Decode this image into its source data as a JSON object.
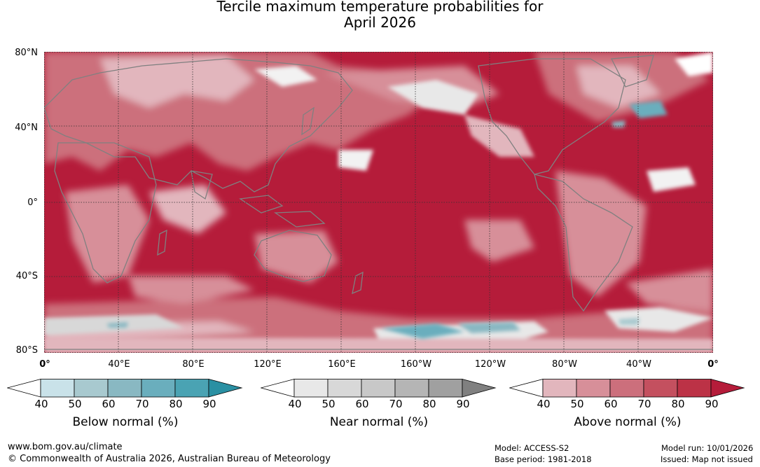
{
  "title": {
    "line1": "Tercile maximum temperature probabilities for",
    "line2": "April 2026"
  },
  "map": {
    "lat_labels": [
      "80°N",
      "40°N",
      "0°",
      "40°S",
      "80°S"
    ],
    "lon_labels": [
      "0°",
      "40°E",
      "80°E",
      "120°E",
      "160°E",
      "160°W",
      "120°W",
      "80°W",
      "40°W",
      "0°"
    ],
    "colors": {
      "ocean_base": "#b51c3a",
      "land_outline": "#808080",
      "gridline": "#333333"
    }
  },
  "colorbars": [
    {
      "title": "Below normal (%)",
      "ticks": [
        "40",
        "50",
        "60",
        "70",
        "80",
        "90"
      ],
      "colors": [
        "#ffffff",
        "#c9e2e9",
        "#a8c9cf",
        "#89b8c2",
        "#6aaebd",
        "#4aa3b3",
        "#2a90a3"
      ]
    },
    {
      "title": "Near normal (%)",
      "ticks": [
        "40",
        "50",
        "60",
        "70",
        "80",
        "90"
      ],
      "colors": [
        "#ffffff",
        "#e8e8e8",
        "#d8d8d8",
        "#c8c8c8",
        "#b5b5b5",
        "#a0a0a0",
        "#808080"
      ]
    },
    {
      "title": "Above normal (%)",
      "ticks": [
        "40",
        "50",
        "60",
        "70",
        "80",
        "90"
      ],
      "colors": [
        "#ffffff",
        "#e2b6bd",
        "#d78f99",
        "#cc6f7c",
        "#c4505f",
        "#bc3246",
        "#b51c3a"
      ]
    }
  ],
  "footer": {
    "website": "www.bom.gov.au/climate",
    "copyright": "© Commonwealth of Australia 2026, Australian Bureau of Meteorology",
    "model": "Model: ACCESS-S2",
    "base_period": "Base period: 1981-2018",
    "model_run": "Model run: 10/01/2026",
    "issued": "Issued: Map not issued"
  }
}
